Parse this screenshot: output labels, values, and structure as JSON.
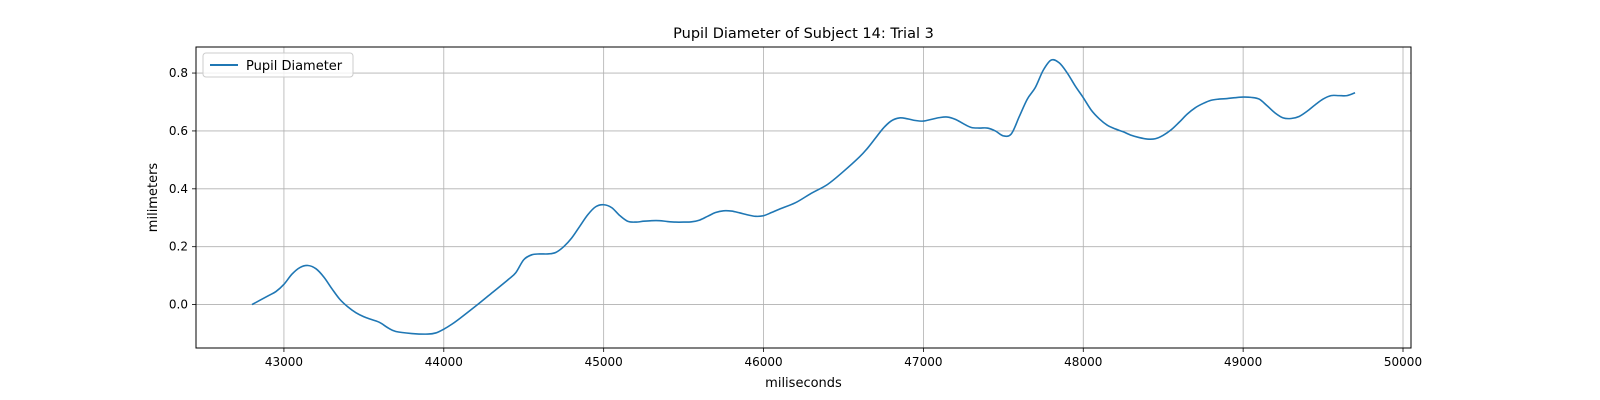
{
  "chart_data": {
    "type": "line",
    "title": "Pupil Diameter of Subject 14: Trial 3",
    "xlabel": "miliseconds",
    "ylabel": "milimeters",
    "xlim": [
      42450,
      50050
    ],
    "ylim": [
      -0.15,
      0.89
    ],
    "xticks": [
      43000,
      44000,
      45000,
      46000,
      47000,
      48000,
      49000,
      50000
    ],
    "yticks": [
      0.0,
      0.2,
      0.4,
      0.6,
      0.8
    ],
    "xtick_labels": [
      "43000",
      "44000",
      "45000",
      "46000",
      "47000",
      "48000",
      "49000",
      "50000"
    ],
    "ytick_labels": [
      "0.0",
      "0.2",
      "0.4",
      "0.6",
      "0.8"
    ],
    "grid": true,
    "legend_position": "top-left",
    "series": [
      {
        "name": "Pupil Diameter",
        "color": "#1f77b4",
        "x": [
          42800,
          42900,
          42950,
          43000,
          43050,
          43100,
          43150,
          43200,
          43250,
          43300,
          43350,
          43400,
          43450,
          43500,
          43550,
          43600,
          43650,
          43700,
          43800,
          43900,
          43950,
          44000,
          44050,
          44100,
          44200,
          44300,
          44400,
          44450,
          44500,
          44550,
          44600,
          44650,
          44700,
          44750,
          44800,
          44850,
          44900,
          44950,
          45000,
          45050,
          45100,
          45150,
          45200,
          45250,
          45300,
          45350,
          45400,
          45450,
          45500,
          45550,
          45600,
          45650,
          45700,
          45750,
          45800,
          45850,
          45900,
          45950,
          46000,
          46050,
          46100,
          46200,
          46300,
          46400,
          46500,
          46600,
          46650,
          46700,
          46750,
          46800,
          46850,
          46900,
          46950,
          47000,
          47050,
          47100,
          47150,
          47200,
          47250,
          47300,
          47350,
          47400,
          47450,
          47500,
          47550,
          47600,
          47650,
          47700,
          47750,
          47800,
          47850,
          47900,
          47950,
          48000,
          48050,
          48100,
          48150,
          48200,
          48250,
          48300,
          48350,
          48400,
          48450,
          48500,
          48550,
          48600,
          48650,
          48700,
          48750,
          48800,
          48850,
          48900,
          48950,
          49000,
          49050,
          49100,
          49150,
          49200,
          49250,
          49300,
          49350,
          49400,
          49450,
          49500,
          49550,
          49600,
          49650,
          49700
        ],
        "values": [
          0.0,
          0.03,
          0.045,
          0.07,
          0.105,
          0.128,
          0.135,
          0.124,
          0.095,
          0.055,
          0.018,
          -0.008,
          -0.028,
          -0.042,
          -0.052,
          -0.062,
          -0.08,
          -0.093,
          -0.1,
          -0.102,
          -0.098,
          -0.085,
          -0.068,
          -0.048,
          -0.005,
          0.04,
          0.085,
          0.11,
          0.155,
          0.172,
          0.175,
          0.175,
          0.18,
          0.2,
          0.23,
          0.27,
          0.31,
          0.338,
          0.345,
          0.335,
          0.308,
          0.288,
          0.285,
          0.288,
          0.29,
          0.29,
          0.287,
          0.285,
          0.285,
          0.286,
          0.292,
          0.305,
          0.318,
          0.324,
          0.323,
          0.317,
          0.31,
          0.305,
          0.307,
          0.318,
          0.33,
          0.352,
          0.385,
          0.415,
          0.46,
          0.51,
          0.54,
          0.575,
          0.61,
          0.635,
          0.645,
          0.642,
          0.636,
          0.634,
          0.64,
          0.646,
          0.648,
          0.64,
          0.625,
          0.612,
          0.61,
          0.61,
          0.6,
          0.583,
          0.59,
          0.65,
          0.71,
          0.75,
          0.81,
          0.845,
          0.835,
          0.8,
          0.755,
          0.715,
          0.672,
          0.642,
          0.62,
          0.607,
          0.597,
          0.585,
          0.577,
          0.572,
          0.573,
          0.585,
          0.604,
          0.63,
          0.658,
          0.68,
          0.695,
          0.706,
          0.71,
          0.712,
          0.715,
          0.717,
          0.716,
          0.71,
          0.687,
          0.662,
          0.645,
          0.643,
          0.65,
          0.668,
          0.69,
          0.71,
          0.722,
          0.722,
          0.722,
          0.732
        ]
      }
    ]
  }
}
